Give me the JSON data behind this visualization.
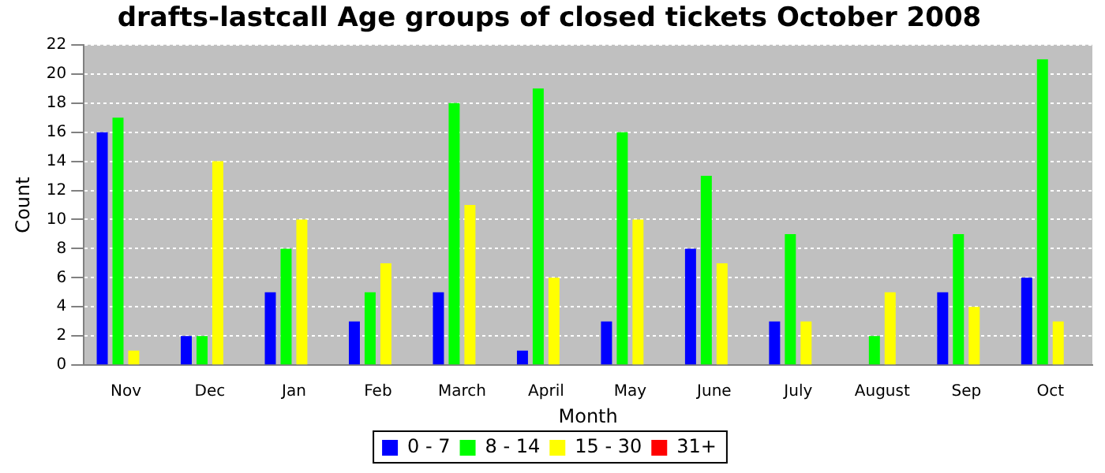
{
  "chart_data": {
    "type": "bar",
    "title": "drafts-lastcall Age groups of closed tickets October 2008",
    "xlabel": "Month",
    "ylabel": "Count",
    "categories": [
      "Nov",
      "Dec",
      "Jan",
      "Feb",
      "March",
      "April",
      "May",
      "June",
      "July",
      "August",
      "Sep",
      "Oct"
    ],
    "series": [
      {
        "name": "0 - 7",
        "color": "#0000ff",
        "values": [
          16,
          2,
          5,
          3,
          5,
          1,
          3,
          8,
          3,
          0,
          5,
          6
        ]
      },
      {
        "name": "8 - 14",
        "color": "#00ff00",
        "values": [
          17,
          2,
          8,
          5,
          18,
          19,
          16,
          13,
          9,
          2,
          9,
          21
        ]
      },
      {
        "name": "15 - 30",
        "color": "#ffff00",
        "values": [
          1,
          14,
          10,
          7,
          11,
          6,
          10,
          7,
          3,
          5,
          4,
          3
        ]
      },
      {
        "name": "31+",
        "color": "#ff0000",
        "values": [
          0,
          0,
          0,
          0,
          0,
          0,
          0,
          0,
          0,
          0,
          0,
          0
        ]
      }
    ],
    "ylim": [
      0,
      22
    ],
    "yticks": [
      0,
      2,
      4,
      6,
      8,
      10,
      12,
      14,
      16,
      18,
      20,
      22
    ],
    "grid": "y",
    "legend": "bottom"
  }
}
